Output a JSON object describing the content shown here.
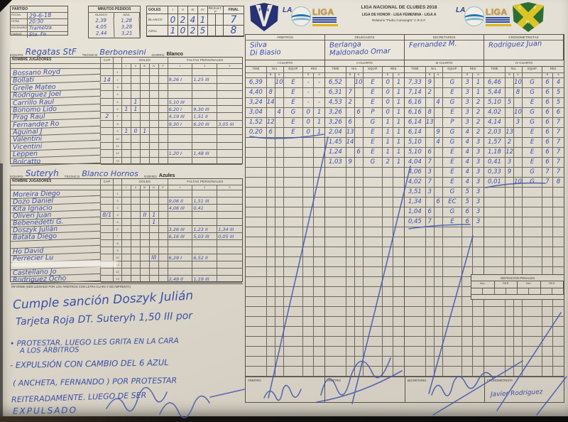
{
  "header": {
    "league_line1": "LIGA NACIONAL DE CLUBES 2018",
    "league_line2": "LIGA DE HONOR - LIGA FEMENINA - LIGA A",
    "league_line3": "Relatorio \"Pedro Consuegra\" C.R.S.F.",
    "logo_la": "LA",
    "logo_liga": "LIGA",
    "fbn_shield_text": "FBN",
    "crf_letters": [
      "C",
      "F",
      "R"
    ]
  },
  "partido": {
    "title": "PARTIDO",
    "rows": [
      {
        "label": "FECHA",
        "value": "29-6-18"
      },
      {
        "label": "HORA",
        "value": "20:30"
      },
      {
        "label": "ESCENARIO",
        "value": "Tramelza"
      },
      {
        "label": "CIUDAD",
        "value": "Sta. Fe"
      }
    ]
  },
  "minutos": {
    "title": "MINUTOS PEDIDOS",
    "cols": [
      "BLANCO",
      "AZUL"
    ],
    "entries_blanco": [
      "2,39",
      "4,05",
      "2,44"
    ],
    "entries_azul": [
      "1,28",
      "3,28",
      "3,21"
    ]
  },
  "goles": {
    "title": "GOLES",
    "quarter_cols": [
      "I",
      "II",
      "III",
      "IV"
    ],
    "result_label": "RESULT. P",
    "final_label": "FINAL",
    "rows": [
      {
        "label": "BLANCO",
        "q": [
          "0",
          "2",
          "4",
          "1"
        ],
        "final": "7"
      },
      {
        "label": "AZUL",
        "q": [
          "1",
          "0",
          "2",
          "5"
        ],
        "final": "8"
      }
    ]
  },
  "officials": {
    "cols": [
      {
        "label": "ÁRBITROS",
        "names": [
          "Silva",
          "Di Biasio"
        ]
      },
      {
        "label": "DELEGADOS",
        "names": [
          "Berlanga",
          "Maldonado Omar"
        ]
      },
      {
        "label": "SECRETARIOS",
        "names": [
          "Fernandez M."
        ]
      },
      {
        "label": "CRONOMETRISTAS",
        "names": [
          "Rodriguez Juan"
        ]
      }
    ]
  },
  "player_table": {
    "name_header": "NOMBRE JUGADORES",
    "cap_header": "CAP",
    "goles_header": "GOLES",
    "goles_cols": [
      "I",
      "II",
      "III",
      "IV",
      "F"
    ],
    "faltas_header": "FALTAS PERSONALES",
    "faltas_cols": [
      "1",
      "2",
      "3"
    ],
    "equipo_label": "EQUIPO",
    "tecnico_label": "TECNICO",
    "gorro_label": "GORRO"
  },
  "teams": [
    {
      "equipo": "Regatas StF",
      "tecnico": "Berbonesini",
      "gorro": "Blanco",
      "players": [
        {
          "name": "Bossano Royd"
        },
        {
          "name": "Bollati",
          "cap": "14",
          "f1": "9,26 I",
          "f2": "1,25 III"
        },
        {
          "name": "Grelle Mateo"
        },
        {
          "name": "Rodriguez Joel"
        },
        {
          "name": "Carrillo Raul",
          "g2": "1",
          "f1": "5,10 III"
        },
        {
          "name": "Bonomo Lido",
          "g1": "1",
          "g2": "1",
          "f1": "6,20 I",
          "f2": "9,30 III"
        },
        {
          "name": "Prag Raul",
          "cap": "2",
          "f1": "4,19 III",
          "f2": "1,51 II"
        },
        {
          "name": "Fernandez Ro",
          "f1": "9,30 I",
          "f2": "6,20 III",
          "f3": "3,05 III"
        },
        {
          "name": "Aguinal J",
          "g1": "1",
          "g2": "II",
          "g3": "1"
        },
        {
          "name": "Valentini"
        },
        {
          "name": "Vicentini"
        },
        {
          "name": "Leppen",
          "f1": "1,20 I",
          "f2": "1,48 III"
        },
        {
          "name": "Bolcatto"
        }
      ]
    },
    {
      "equipo": "Suteryh",
      "tecnico": "Blanco Hornos",
      "gorro": "Azules",
      "players": [
        {
          "name": "Moreira Diego"
        },
        {
          "name": "Dozo Daniel",
          "f1": "9,06 II",
          "f2": "1,51 III"
        },
        {
          "name": "Kita Ignacio",
          "f1": "4,06 III",
          "f2": "0,41"
        },
        {
          "name": "Oliveri Juan",
          "cap": "8/1",
          "g3": "II",
          "g4": "1"
        },
        {
          "name": "Bebenedetti G.",
          "g4": "1"
        },
        {
          "name": "Doszyk Julián",
          "f1": "3,26 III",
          "f2": "1,23 II",
          "f3": "1,34 III"
        },
        {
          "name": "Batata Diego",
          "f1": "6,16 III",
          "f2": "5,03 III",
          "f3": "0,05 III"
        },
        {
          "name": ""
        },
        {
          "name": "Ho David"
        },
        {
          "name": "Perrecier Lu",
          "g4": "III",
          "f1": "6,29 I",
          "f2": "6,52 II"
        },
        {
          "name": ""
        },
        {
          "name": "Castellano Jo"
        },
        {
          "name": "Rodriguez Ocho",
          "f1": "2,49 II",
          "f2": "1,19 III"
        }
      ]
    }
  ],
  "quarters": {
    "col_time": "TIME",
    "col_nro": "Nro.",
    "col_equip": "EQUIP",
    "col_res": "RES",
    "sub_b": "B",
    "sub_a": "A",
    "groups": [
      {
        "label": "I CUARTO",
        "rows": [
          [
            "6,39",
            "",
            "10",
            "E",
            "-",
            "-"
          ],
          [
            "4,40",
            "8",
            "",
            "E",
            "-",
            "-"
          ],
          [
            "3,24",
            "14",
            "",
            "E",
            "-",
            "-"
          ],
          [
            "3,04",
            "",
            "4",
            "G",
            "0",
            "1"
          ],
          [
            "1,52",
            "12",
            "",
            "E",
            "0",
            "1"
          ],
          [
            "0,20",
            "6",
            "",
            "E",
            "0",
            "1"
          ]
        ]
      },
      {
        "label": "II CUARTO",
        "rows": [
          [
            "6,52",
            "",
            "10",
            "E",
            "0",
            "1"
          ],
          [
            "6,31",
            "7",
            "",
            "E",
            "0",
            "1"
          ],
          [
            "4,53",
            "2",
            "",
            "E",
            "0",
            "1"
          ],
          [
            "3,26",
            "",
            "6",
            "P",
            "0",
            "1"
          ],
          [
            "3,26",
            "6",
            "",
            "G",
            "1",
            "1"
          ],
          [
            "2,04",
            "13",
            "",
            "E",
            "1",
            "1"
          ],
          [
            "1,45",
            "14",
            "",
            "E",
            "1",
            "1"
          ],
          [
            "1,24",
            "",
            "6",
            "E",
            "1",
            "1"
          ],
          [
            "1,03",
            "9",
            "",
            "G",
            "2",
            "1"
          ]
        ]
      },
      {
        "label": "III CUARTO",
        "rows": [
          [
            "7,33",
            "9",
            "",
            "G",
            "3",
            "1"
          ],
          [
            "7,14",
            "2",
            "",
            "E",
            "3",
            "1"
          ],
          [
            "6,16",
            "",
            "4",
            "G",
            "3",
            "2"
          ],
          [
            "6,16",
            "8",
            "",
            "E",
            "3",
            "2"
          ],
          [
            "6,14",
            "13",
            "",
            "P",
            "3",
            "2"
          ],
          [
            "6,14",
            "",
            "9",
            "G",
            "4",
            "2"
          ],
          [
            "5,10",
            "",
            "4",
            "G",
            "4",
            "3"
          ],
          [
            "5,10",
            "6",
            "",
            "E",
            "4",
            "3"
          ],
          [
            "4,04",
            "7",
            "",
            "E",
            "4",
            "3"
          ],
          [
            "4,06",
            "3",
            "",
            "E",
            "4",
            "3"
          ],
          [
            "4,02",
            "7",
            "",
            "E",
            "4",
            "3"
          ],
          [
            "3,51",
            "3",
            "",
            "G",
            "5",
            "3"
          ],
          [
            "1,34",
            "",
            "6",
            "EC",
            "5",
            "3"
          ],
          [
            "1,04",
            "6",
            "",
            "G",
            "6",
            "3"
          ],
          [
            "0,45",
            "7",
            "",
            "E",
            "6",
            "3"
          ]
        ]
      },
      {
        "label": "IV CUARTO",
        "rows": [
          [
            "6,46",
            "",
            "10",
            "G",
            "6",
            "4"
          ],
          [
            "5,44",
            "",
            "8",
            "G",
            "6",
            "5"
          ],
          [
            "5,10",
            "5",
            "",
            "E",
            "6",
            "5"
          ],
          [
            "4,02",
            "",
            "10",
            "G",
            "6",
            "6"
          ],
          [
            "4,14",
            "",
            "3",
            "G",
            "6",
            "7"
          ],
          [
            "2,03",
            "13",
            "",
            "E",
            "6",
            "7"
          ],
          [
            "1,57",
            "2",
            "",
            "E",
            "6",
            "7"
          ],
          [
            "1,18",
            "12",
            "",
            "E",
            "6",
            "7"
          ],
          [
            "0,41",
            "3",
            "",
            "E",
            "6",
            "7"
          ],
          [
            "0,33",
            "9",
            "",
            "G",
            "7",
            "7"
          ],
          [
            "0,01",
            "",
            "10",
            "G",
            "7",
            "8"
          ]
        ]
      }
    ]
  },
  "penales": {
    "title": "DEFINICIÓN PENALES",
    "cols": [
      "Nro.",
      "RES",
      "Nro.",
      "RES"
    ]
  },
  "informe": {
    "printed_label": "INFORME (ser llenado por los árbitros con letra clara y de imprenta)",
    "lines": [
      "Cumple sanción Doszyk Julián",
      "Tarjeta Roja DT. Suteryh 1,50 III por",
      "• PROTESTAR. LUEGO LES GRITA EN LA CARA",
      "A LOS ÁRBITROS",
      "- EXPULSIÓN CON CAMBIO DEL 6 AZUL",
      "( ANCHETA, FERNANDO ) POR PROTESTAR",
      "REITERADAMENTE. LUEGO DE SER",
      "EXPULSADO"
    ]
  },
  "signatures": {
    "labels": [
      "ÁRBITRO",
      "ÁRBITRO",
      "SECRETARIO",
      "CRONOMETRISTA"
    ],
    "cronometrista_name": "Javier Rodriguez"
  },
  "colors": {
    "ink_blue": "#3d4fa5",
    "paper": "#ddd8cb",
    "printed_line": "#57534a",
    "fbn_navy": "#273173",
    "liga_yellow": "#e2b219",
    "crf_green": "#2c6e31"
  }
}
